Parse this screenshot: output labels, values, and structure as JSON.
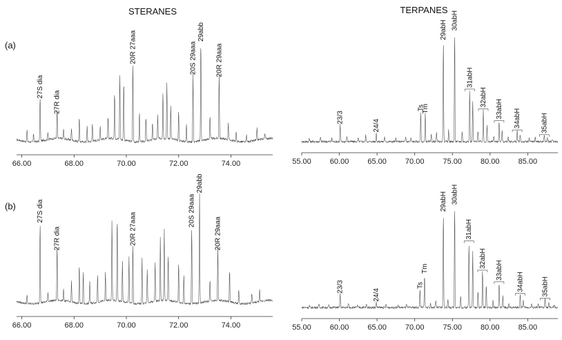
{
  "titles": {
    "steranes": "STERANES",
    "terpanes": "TERPANES"
  },
  "rows": [
    "(a)",
    "(b)"
  ],
  "chart_data": [
    {
      "type": "line",
      "panel": "steranes-a",
      "xlim": [
        65.8,
        75.6
      ],
      "ylim": [
        0,
        100
      ],
      "ticks": [
        "66.00",
        "68.00",
        "70.00",
        "72.00",
        "74.00"
      ],
      "tick_values": [
        66,
        68,
        70,
        72,
        74
      ],
      "peaks": [
        {
          "x": 66.7,
          "h": 38,
          "label": "27S dia"
        },
        {
          "x": 67.35,
          "h": 25,
          "label": "27R dia"
        },
        {
          "x": 70.25,
          "h": 67,
          "label": "20R 27aaa"
        },
        {
          "x": 72.55,
          "h": 58,
          "label": "20S 29aaa"
        },
        {
          "x": 72.85,
          "h": 86,
          "label": "29abb"
        },
        {
          "x": 73.55,
          "h": 56,
          "label": "20R 29aaa"
        }
      ],
      "minor_peaks": [
        {
          "x": 66.2,
          "h": 10
        },
        {
          "x": 66.45,
          "h": 7
        },
        {
          "x": 67.0,
          "h": 6
        },
        {
          "x": 67.6,
          "h": 8
        },
        {
          "x": 67.9,
          "h": 10
        },
        {
          "x": 68.2,
          "h": 20
        },
        {
          "x": 68.5,
          "h": 13
        },
        {
          "x": 68.7,
          "h": 15
        },
        {
          "x": 69.0,
          "h": 12
        },
        {
          "x": 69.3,
          "h": 18
        },
        {
          "x": 69.55,
          "h": 40
        },
        {
          "x": 69.75,
          "h": 56
        },
        {
          "x": 69.9,
          "h": 50
        },
        {
          "x": 70.5,
          "h": 25
        },
        {
          "x": 70.75,
          "h": 20
        },
        {
          "x": 71.0,
          "h": 15
        },
        {
          "x": 71.2,
          "h": 20
        },
        {
          "x": 71.4,
          "h": 40
        },
        {
          "x": 71.55,
          "h": 48
        },
        {
          "x": 71.7,
          "h": 28
        },
        {
          "x": 72.0,
          "h": 25
        },
        {
          "x": 72.3,
          "h": 15
        },
        {
          "x": 73.2,
          "h": 20
        },
        {
          "x": 73.9,
          "h": 15
        },
        {
          "x": 74.2,
          "h": 8
        },
        {
          "x": 74.6,
          "h": 6
        },
        {
          "x": 75.0,
          "h": 10
        },
        {
          "x": 75.3,
          "h": 5
        }
      ]
    },
    {
      "type": "line",
      "panel": "terpanes-a",
      "xlim": [
        55,
        89
      ],
      "ylim": [
        0,
        100
      ],
      "ticks": [
        "55.00",
        "60.00",
        "65.00",
        "70.00",
        "75.00",
        "80.00",
        "85.00"
      ],
      "tick_values": [
        55,
        60,
        65,
        70,
        75,
        80,
        85
      ],
      "peaks": [
        {
          "x": 60.1,
          "h": 15,
          "label": "23/3"
        },
        {
          "x": 64.9,
          "h": 8,
          "label": "24/4"
        },
        {
          "x": 70.8,
          "h": 26,
          "label": "Ts"
        },
        {
          "x": 71.4,
          "h": 24,
          "label": "Tm"
        },
        {
          "x": 73.8,
          "h": 87,
          "label": "29abH"
        },
        {
          "x": 75.3,
          "h": 95,
          "label": "30abH"
        },
        {
          "x": 77.3,
          "h": 45,
          "label": "31abH",
          "bracket": true
        },
        {
          "x": 79.1,
          "h": 28,
          "label": "32abH",
          "bracket": true
        },
        {
          "x": 81.2,
          "h": 18,
          "label": "33abH",
          "bracket": true
        },
        {
          "x": 83.6,
          "h": 10,
          "label": "34abH",
          "bracket": true
        },
        {
          "x": 87.2,
          "h": 6,
          "label": "35abH",
          "bracket": true
        }
      ],
      "minor_peaks": [
        {
          "x": 56.0,
          "h": 3
        },
        {
          "x": 57.5,
          "h": 4
        },
        {
          "x": 59.0,
          "h": 3
        },
        {
          "x": 61.0,
          "h": 5
        },
        {
          "x": 62.5,
          "h": 3
        },
        {
          "x": 63.5,
          "h": 6
        },
        {
          "x": 66.0,
          "h": 4
        },
        {
          "x": 67.5,
          "h": 3
        },
        {
          "x": 68.8,
          "h": 4
        },
        {
          "x": 69.5,
          "h": 3
        },
        {
          "x": 72.2,
          "h": 6
        },
        {
          "x": 72.9,
          "h": 8
        },
        {
          "x": 74.5,
          "h": 10
        },
        {
          "x": 76.3,
          "h": 9
        },
        {
          "x": 77.7,
          "h": 35
        },
        {
          "x": 78.4,
          "h": 10
        },
        {
          "x": 79.6,
          "h": 14
        },
        {
          "x": 80.5,
          "h": 5
        },
        {
          "x": 81.6,
          "h": 10
        },
        {
          "x": 82.4,
          "h": 4
        },
        {
          "x": 84.0,
          "h": 6
        },
        {
          "x": 85.2,
          "h": 3
        },
        {
          "x": 86.0,
          "h": 4
        },
        {
          "x": 87.6,
          "h": 4
        },
        {
          "x": 88.3,
          "h": 2
        }
      ]
    },
    {
      "type": "line",
      "panel": "steranes-b",
      "xlim": [
        65.8,
        75.6
      ],
      "ylim": [
        0,
        100
      ],
      "ticks": [
        "66.00",
        "68.00",
        "70.00",
        "72.00",
        "74.00"
      ],
      "tick_values": [
        66,
        68,
        70,
        72,
        74
      ],
      "peaks": [
        {
          "x": 66.7,
          "h": 72,
          "label": "27S dia"
        },
        {
          "x": 67.35,
          "h": 48,
          "label": "27R dia"
        },
        {
          "x": 70.25,
          "h": 52,
          "label": "20R 27aaa"
        },
        {
          "x": 72.5,
          "h": 68,
          "label": "20S 29aaa"
        },
        {
          "x": 72.8,
          "h": 98,
          "label": "29abb"
        },
        {
          "x": 73.5,
          "h": 48,
          "label": "20R 29aaa"
        }
      ],
      "minor_peaks": [
        {
          "x": 66.2,
          "h": 7
        },
        {
          "x": 67.0,
          "h": 8
        },
        {
          "x": 67.6,
          "h": 10
        },
        {
          "x": 67.9,
          "h": 18
        },
        {
          "x": 68.2,
          "h": 35
        },
        {
          "x": 68.35,
          "h": 28
        },
        {
          "x": 68.6,
          "h": 20
        },
        {
          "x": 68.9,
          "h": 24
        },
        {
          "x": 69.2,
          "h": 25
        },
        {
          "x": 69.45,
          "h": 70
        },
        {
          "x": 69.65,
          "h": 73
        },
        {
          "x": 69.85,
          "h": 35
        },
        {
          "x": 70.1,
          "h": 40
        },
        {
          "x": 70.6,
          "h": 40
        },
        {
          "x": 70.8,
          "h": 30
        },
        {
          "x": 71.1,
          "h": 35
        },
        {
          "x": 71.3,
          "h": 55
        },
        {
          "x": 71.45,
          "h": 63
        },
        {
          "x": 71.6,
          "h": 40
        },
        {
          "x": 72.0,
          "h": 35
        },
        {
          "x": 72.2,
          "h": 25
        },
        {
          "x": 73.2,
          "h": 18
        },
        {
          "x": 73.95,
          "h": 28
        },
        {
          "x": 74.3,
          "h": 12
        },
        {
          "x": 74.8,
          "h": 8
        },
        {
          "x": 75.1,
          "h": 10
        }
      ]
    },
    {
      "type": "line",
      "panel": "terpanes-b",
      "xlim": [
        55,
        89
      ],
      "ylim": [
        0,
        100
      ],
      "ticks": [
        "55.00",
        "60.00",
        "65.00",
        "70.00",
        "75.00",
        "80.00",
        "85.00"
      ],
      "tick_values": [
        55,
        60,
        65,
        70,
        75,
        80,
        85
      ],
      "peaks": [
        {
          "x": 60.1,
          "h": 12,
          "label": "23/3"
        },
        {
          "x": 64.9,
          "h": 5,
          "label": "24/4"
        },
        {
          "x": 70.7,
          "h": 16,
          "label": "Ts"
        },
        {
          "x": 71.3,
          "h": 29,
          "label": "Tm"
        },
        {
          "x": 73.8,
          "h": 82,
          "label": "29abH"
        },
        {
          "x": 75.3,
          "h": 88,
          "label": "30abH"
        },
        {
          "x": 77.2,
          "h": 57,
          "label": "31abH",
          "bracket": true
        },
        {
          "x": 79.0,
          "h": 32,
          "label": "32abH",
          "bracket": true
        },
        {
          "x": 81.2,
          "h": 22,
          "label": "33abH",
          "bracket": true
        },
        {
          "x": 84.0,
          "h": 12,
          "label": "34abH",
          "bracket": true
        },
        {
          "x": 87.3,
          "h": 8,
          "label": "35abH",
          "bracket": true
        }
      ],
      "minor_peaks": [
        {
          "x": 56.0,
          "h": 2
        },
        {
          "x": 57.3,
          "h": 3
        },
        {
          "x": 58.6,
          "h": 2
        },
        {
          "x": 61.2,
          "h": 4
        },
        {
          "x": 62.4,
          "h": 2
        },
        {
          "x": 63.6,
          "h": 3
        },
        {
          "x": 66.2,
          "h": 3
        },
        {
          "x": 67.8,
          "h": 2
        },
        {
          "x": 68.9,
          "h": 3
        },
        {
          "x": 72.1,
          "h": 4
        },
        {
          "x": 72.8,
          "h": 6
        },
        {
          "x": 74.4,
          "h": 8
        },
        {
          "x": 76.1,
          "h": 10
        },
        {
          "x": 77.7,
          "h": 48
        },
        {
          "x": 78.4,
          "h": 15
        },
        {
          "x": 79.5,
          "h": 20
        },
        {
          "x": 80.4,
          "h": 6
        },
        {
          "x": 81.7,
          "h": 10
        },
        {
          "x": 82.5,
          "h": 3
        },
        {
          "x": 84.4,
          "h": 7
        },
        {
          "x": 85.5,
          "h": 3
        },
        {
          "x": 86.4,
          "h": 3
        },
        {
          "x": 87.8,
          "h": 4
        },
        {
          "x": 88.5,
          "h": 2
        }
      ]
    }
  ]
}
